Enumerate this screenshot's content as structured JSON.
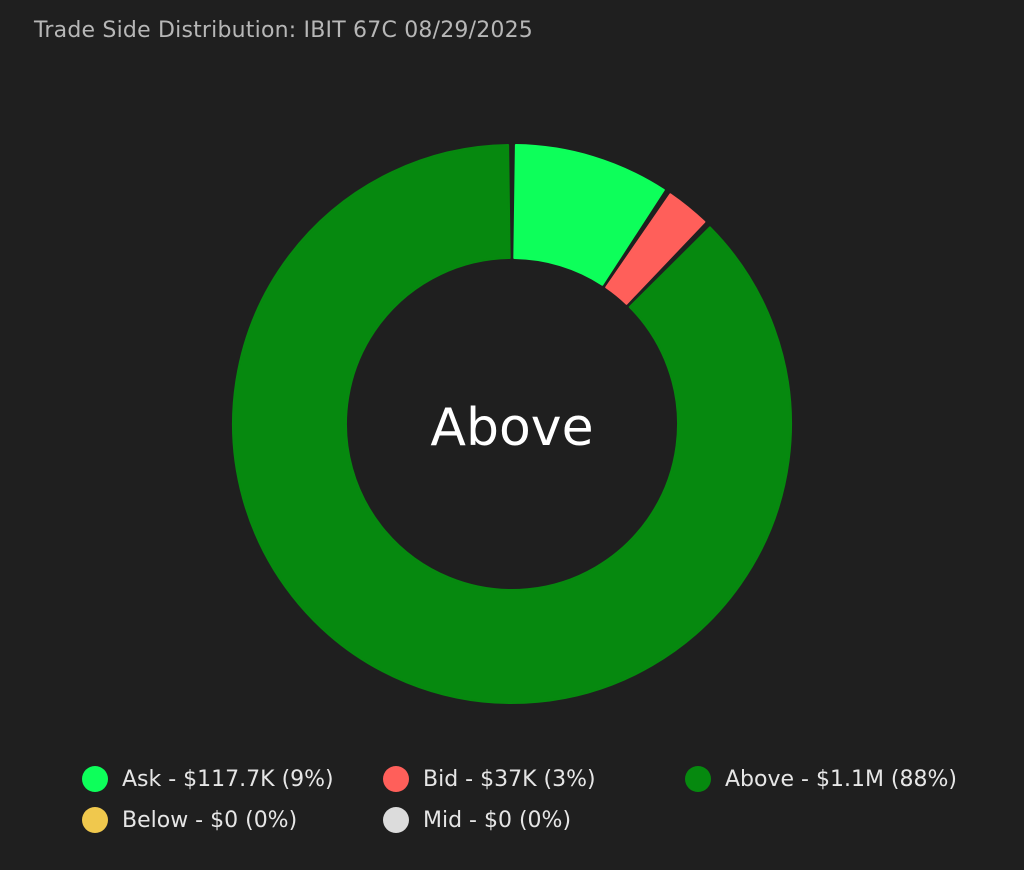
{
  "title": "Trade Side Distribution: IBIT 67C 08/29/2025",
  "chart_data": {
    "type": "pie",
    "variant": "donut",
    "center_label": "Above",
    "slices": [
      {
        "name": "Ask",
        "value": 117700,
        "percent": 9,
        "color": "#0dff5a"
      },
      {
        "name": "Bid",
        "value": 37000,
        "percent": 3,
        "color": "#ff5f5a"
      },
      {
        "name": "Above",
        "value": 1100000,
        "percent": 88,
        "color": "#06890f"
      },
      {
        "name": "Below",
        "value": 0,
        "percent": 0,
        "color": "#f0c84d"
      },
      {
        "name": "Mid",
        "value": 0,
        "percent": 0,
        "color": "#dcdcdc"
      }
    ],
    "legend": {
      "placement": "bottom",
      "entries": [
        {
          "label": "Ask - $117.7K (9%)",
          "color": "#0dff5a"
        },
        {
          "label": "Bid - $37K (3%)",
          "color": "#ff5f5a"
        },
        {
          "label": "Above - $1.1M (88%)",
          "color": "#06890f"
        },
        {
          "label": "Below - $0 (0%)",
          "color": "#f0c84d"
        },
        {
          "label": "Mid - $0 (0%)",
          "color": "#dcdcdc"
        }
      ]
    }
  }
}
